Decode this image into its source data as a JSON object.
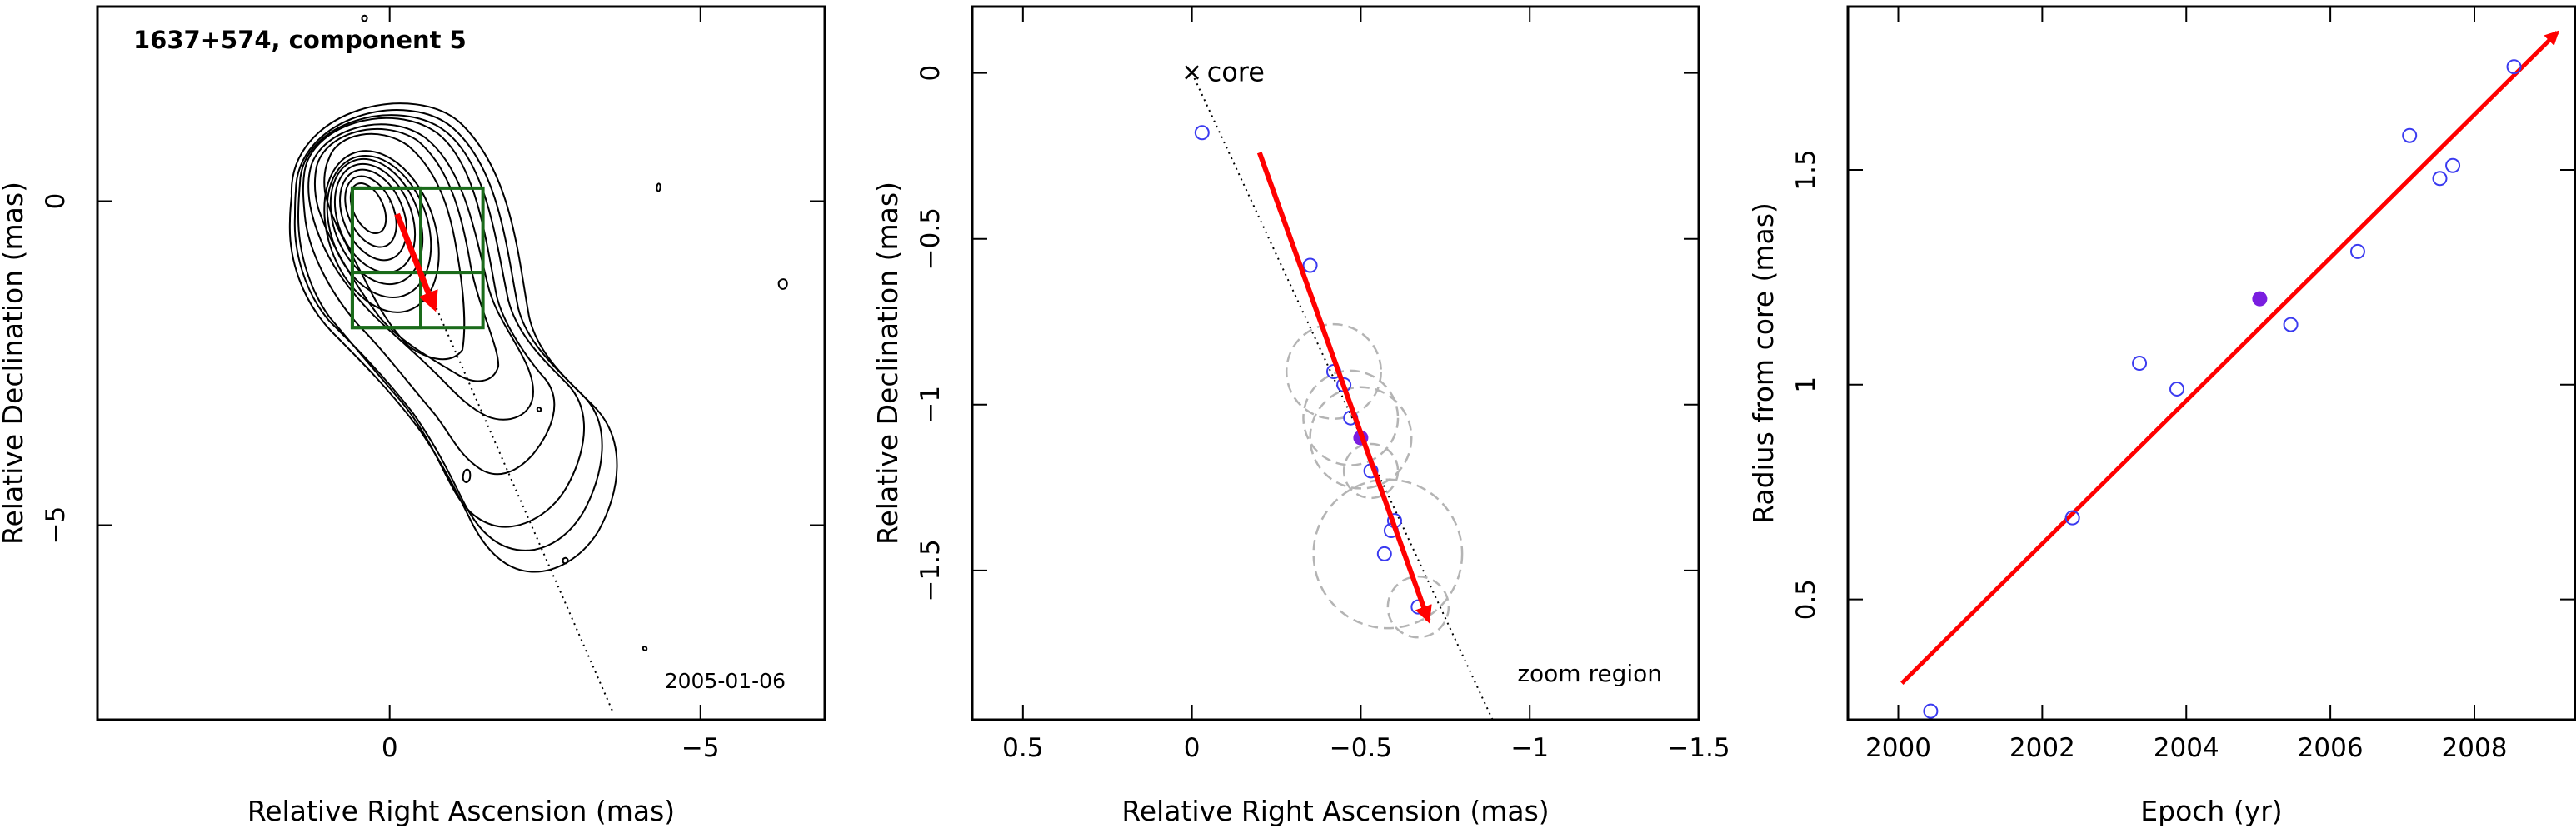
{
  "chart_data": [
    {
      "type": "contour",
      "title": "1637+574, component 5",
      "date_label": "2005-01-06",
      "xlabel": "Relative Right Ascension (mas)",
      "ylabel": "Relative Declination (mas)",
      "xlim": [
        4.7,
        -7.0
      ],
      "ylim": [
        -8.0,
        3.0
      ],
      "xticks": [
        0,
        -5
      ],
      "yticks": [
        0,
        -5
      ],
      "x_tick_labels": [
        "0",
        "−5"
      ],
      "y_tick_labels": [
        "0",
        "−5"
      ],
      "ridge_line": [
        [
          0,
          0
        ],
        [
          -3.6,
          -7.9
        ]
      ],
      "zoom_boxes": [
        {
          "x": [
            0.6,
            -1.5
          ],
          "y": [
            0.2,
            -1.1
          ]
        },
        {
          "x": [
            0.6,
            -1.5
          ],
          "y": [
            -1.1,
            -1.95
          ]
        },
        {
          "x": [
            0.6,
            -0.5
          ],
          "y": [
            0.2,
            -1.95
          ]
        }
      ],
      "motion_arrow": {
        "from": [
          -0.12,
          -0.2
        ],
        "to": [
          -0.72,
          -1.65
        ]
      },
      "contour_color": "#000000",
      "box_color": "#1a6b1a",
      "arrow_color": "#ff0000"
    },
    {
      "type": "scatter",
      "xlabel": "Relative Right Ascension (mas)",
      "ylabel": "Relative Declination (mas)",
      "xlim": [
        0.65,
        -1.5
      ],
      "ylim": [
        -1.95,
        0.2
      ],
      "xticks": [
        0.5,
        0,
        -0.5,
        -1,
        -1.5
      ],
      "yticks": [
        0,
        -0.5,
        -1,
        -1.5
      ],
      "x_tick_labels": [
        "0.5",
        "0",
        "−0.5",
        "−1",
        "−1.5"
      ],
      "y_tick_labels": [
        "0",
        "−0.5",
        "−1",
        "−1.5"
      ],
      "core_label": "core",
      "core_marker": "×",
      "region_label": "zoom region",
      "points": [
        {
          "x": -0.03,
          "y": -0.18
        },
        {
          "x": -0.35,
          "y": -0.58
        },
        {
          "x": -0.42,
          "y": -0.9
        },
        {
          "x": -0.45,
          "y": -0.94
        },
        {
          "x": -0.47,
          "y": -1.04
        },
        {
          "x": -0.53,
          "y": -1.2
        },
        {
          "x": -0.6,
          "y": -1.35
        },
        {
          "x": -0.59,
          "y": -1.38
        },
        {
          "x": -0.57,
          "y": -1.45
        },
        {
          "x": -0.67,
          "y": -1.61
        }
      ],
      "highlight_point": {
        "x": -0.5,
        "y": -1.1
      },
      "error_circles": [
        {
          "x": -0.42,
          "y": -0.9,
          "r": 0.14
        },
        {
          "x": -0.47,
          "y": -1.04,
          "r": 0.14
        },
        {
          "x": -0.5,
          "y": -1.1,
          "r": 0.15
        },
        {
          "x": -0.53,
          "y": -1.2,
          "r": 0.08
        },
        {
          "x": -0.58,
          "y": -1.45,
          "r": 0.22
        },
        {
          "x": -0.67,
          "y": -1.61,
          "r": 0.09
        }
      ],
      "ridge_line": [
        [
          0,
          0
        ],
        [
          -0.89,
          -1.95
        ]
      ],
      "motion_arrow": {
        "from": [
          -0.2,
          -0.24
        ],
        "to": [
          -0.7,
          -1.65
        ]
      },
      "point_color": "#3a3af0",
      "highlight_color": "#7a1ee0",
      "arrow_color": "#ff0000"
    },
    {
      "type": "scatter",
      "xlabel": "Epoch (yr)",
      "ylabel": "Radius from core (mas)",
      "xlim": [
        1999.3,
        2009.4
      ],
      "ylim": [
        0.22,
        1.88
      ],
      "xticks": [
        2000,
        2002,
        2004,
        2006,
        2008
      ],
      "yticks": [
        0.5,
        1,
        1.5
      ],
      "x_tick_labels": [
        "2000",
        "2002",
        "2004",
        "2006",
        "2008"
      ],
      "y_tick_labels": [
        "0.5",
        "1",
        "1.5"
      ],
      "points": [
        {
          "x": 2000.45,
          "y": 0.24
        },
        {
          "x": 2002.42,
          "y": 0.69
        },
        {
          "x": 2003.35,
          "y": 1.05
        },
        {
          "x": 2003.87,
          "y": 0.99
        },
        {
          "x": 2005.45,
          "y": 1.14
        },
        {
          "x": 2006.38,
          "y": 1.31
        },
        {
          "x": 2007.1,
          "y": 1.58
        },
        {
          "x": 2007.52,
          "y": 1.48
        },
        {
          "x": 2007.7,
          "y": 1.51
        },
        {
          "x": 2008.55,
          "y": 1.74
        }
      ],
      "highlight_point": {
        "x": 2005.02,
        "y": 1.2
      },
      "fit_arrow": {
        "from": [
          2000.05,
          0.305
        ],
        "to": [
          2009.15,
          1.82
        ]
      },
      "point_color": "#3a3af0",
      "highlight_color": "#7a1ee0",
      "arrow_color": "#ff0000"
    }
  ]
}
